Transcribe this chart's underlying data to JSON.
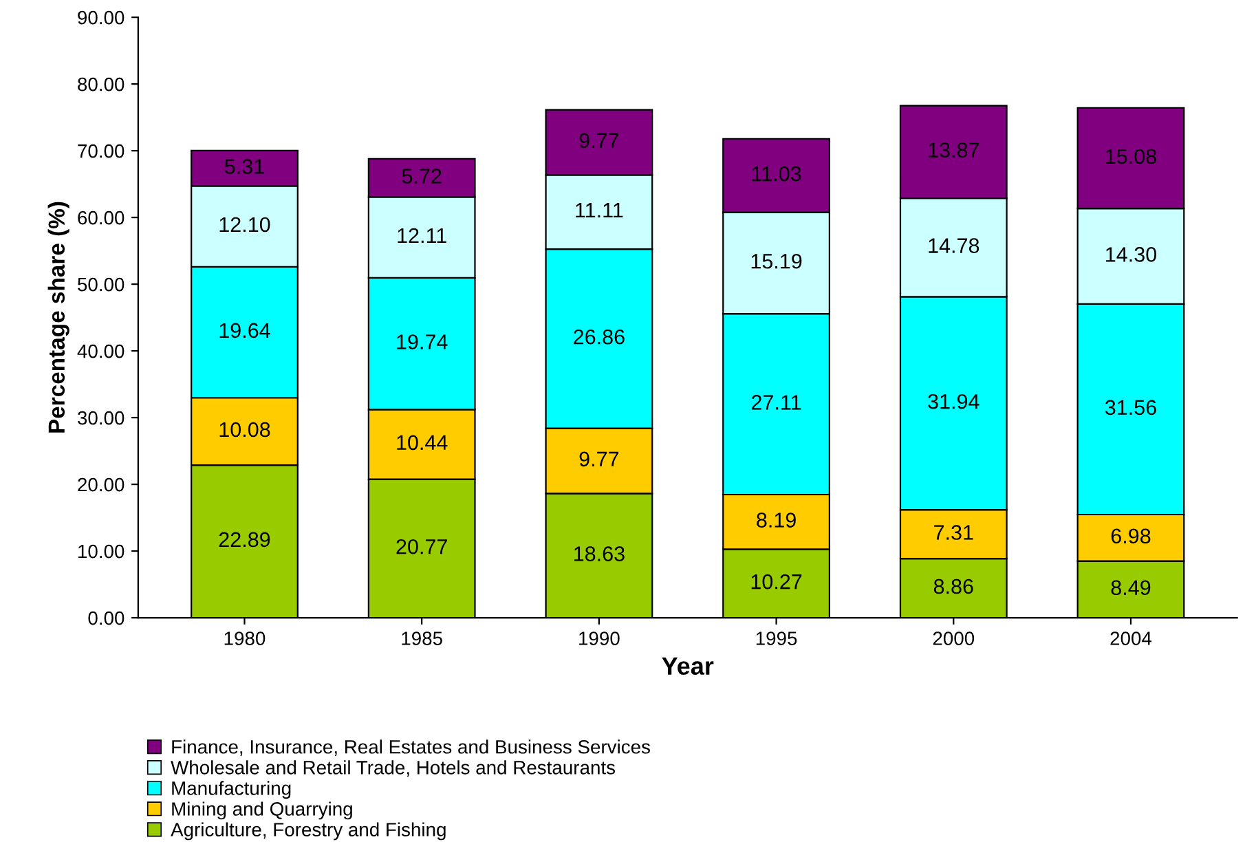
{
  "chart_data": {
    "type": "bar",
    "stacked": true,
    "xlabel": "Year",
    "ylabel": "Percentage share (%)",
    "categories": [
      "1980",
      "1985",
      "1990",
      "1995",
      "2000",
      "2004"
    ],
    "ylim": [
      0,
      90
    ],
    "yticks": [
      {
        "value": 0,
        "label": "0.00"
      },
      {
        "value": 10,
        "label": "10.00"
      },
      {
        "value": 20,
        "label": "20.00"
      },
      {
        "value": 30,
        "label": "30.00"
      },
      {
        "value": 40,
        "label": "40.00"
      },
      {
        "value": 50,
        "label": "50.00"
      },
      {
        "value": 60,
        "label": "60.00"
      },
      {
        "value": 70,
        "label": "70.00"
      },
      {
        "value": 80,
        "label": "80.00"
      },
      {
        "value": 90,
        "label": "90.00"
      }
    ],
    "grid": false,
    "legend": "bottom",
    "series": [
      {
        "name": "Agriculture, Forestry and Fishing",
        "color": "#99cc00",
        "values": [
          22.89,
          20.77,
          18.63,
          10.27,
          8.86,
          8.49
        ],
        "value_labels": [
          "22.89",
          "20.77",
          "18.63",
          "10.27",
          "8.86",
          "8.49"
        ]
      },
      {
        "name": "Mining and Quarrying",
        "color": "#ffcc00",
        "values": [
          10.08,
          10.44,
          9.77,
          8.19,
          7.31,
          6.98
        ],
        "value_labels": [
          "10.08",
          "10.44",
          "9.77",
          "8.19",
          "7.31",
          "6.98"
        ]
      },
      {
        "name": "Manufacturing",
        "color": "#00ffff",
        "values": [
          19.64,
          19.74,
          26.86,
          27.11,
          31.94,
          31.56
        ],
        "value_labels": [
          "19.64",
          "19.74",
          "26.86",
          "27.11",
          "31.94",
          "31.56"
        ]
      },
      {
        "name": "Wholesale and Retail Trade, Hotels and Restaurants",
        "color": "#ccffff",
        "values": [
          12.1,
          12.11,
          11.11,
          15.19,
          14.78,
          14.3
        ],
        "value_labels": [
          "12.10",
          "12.11",
          "11.11",
          "15.19",
          "14.78",
          "14.30"
        ]
      },
      {
        "name": "Finance, Insurance, Real Estates and Business Services",
        "color": "#800080",
        "values": [
          5.31,
          5.72,
          9.77,
          11.03,
          13.87,
          15.08
        ],
        "value_labels": [
          "5.31",
          "5.72",
          "9.77",
          "11.03",
          "13.87",
          "15.08"
        ]
      }
    ]
  }
}
